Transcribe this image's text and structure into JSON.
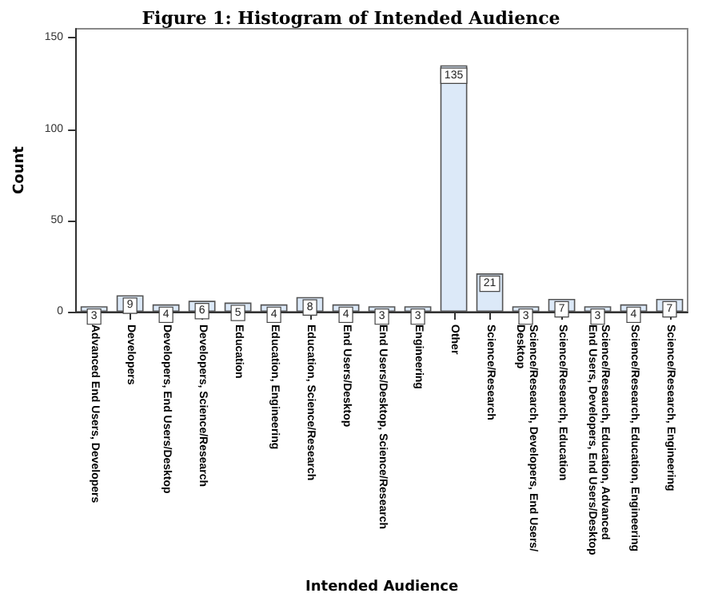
{
  "chart_data": {
    "type": "bar",
    "title": "Figure 1: Histogram of Intended Audience",
    "xlabel": "Intended Audience",
    "ylabel": "Count",
    "categories": [
      "Advanced End Users, Developers",
      "Developers",
      "Developers, End Users/Desktop",
      "Developers, Science/Research",
      "Education",
      "Education, Engineering",
      "Education, Science/Research",
      "End Users/Desktop",
      "End Users/Desktop, Science/Research",
      "Engineering",
      "Other",
      "Science/Research",
      "Science/Research, Developers, End Users/Desktop",
      "Science/Research, Education",
      "Science/Research, Education, Advanced End Users, Developers, End Users/Desktop",
      "Science/Research, Education, Engineering",
      "Science/Research, Engineering"
    ],
    "values": [
      3,
      9,
      4,
      6,
      5,
      4,
      8,
      4,
      3,
      3,
      135,
      21,
      3,
      7,
      3,
      4,
      7
    ],
    "color": "#dce9f8",
    "data_labels": true,
    "ylim": [
      0,
      155
    ],
    "yticks": [
      0,
      50,
      100,
      150
    ],
    "grid": false
  }
}
